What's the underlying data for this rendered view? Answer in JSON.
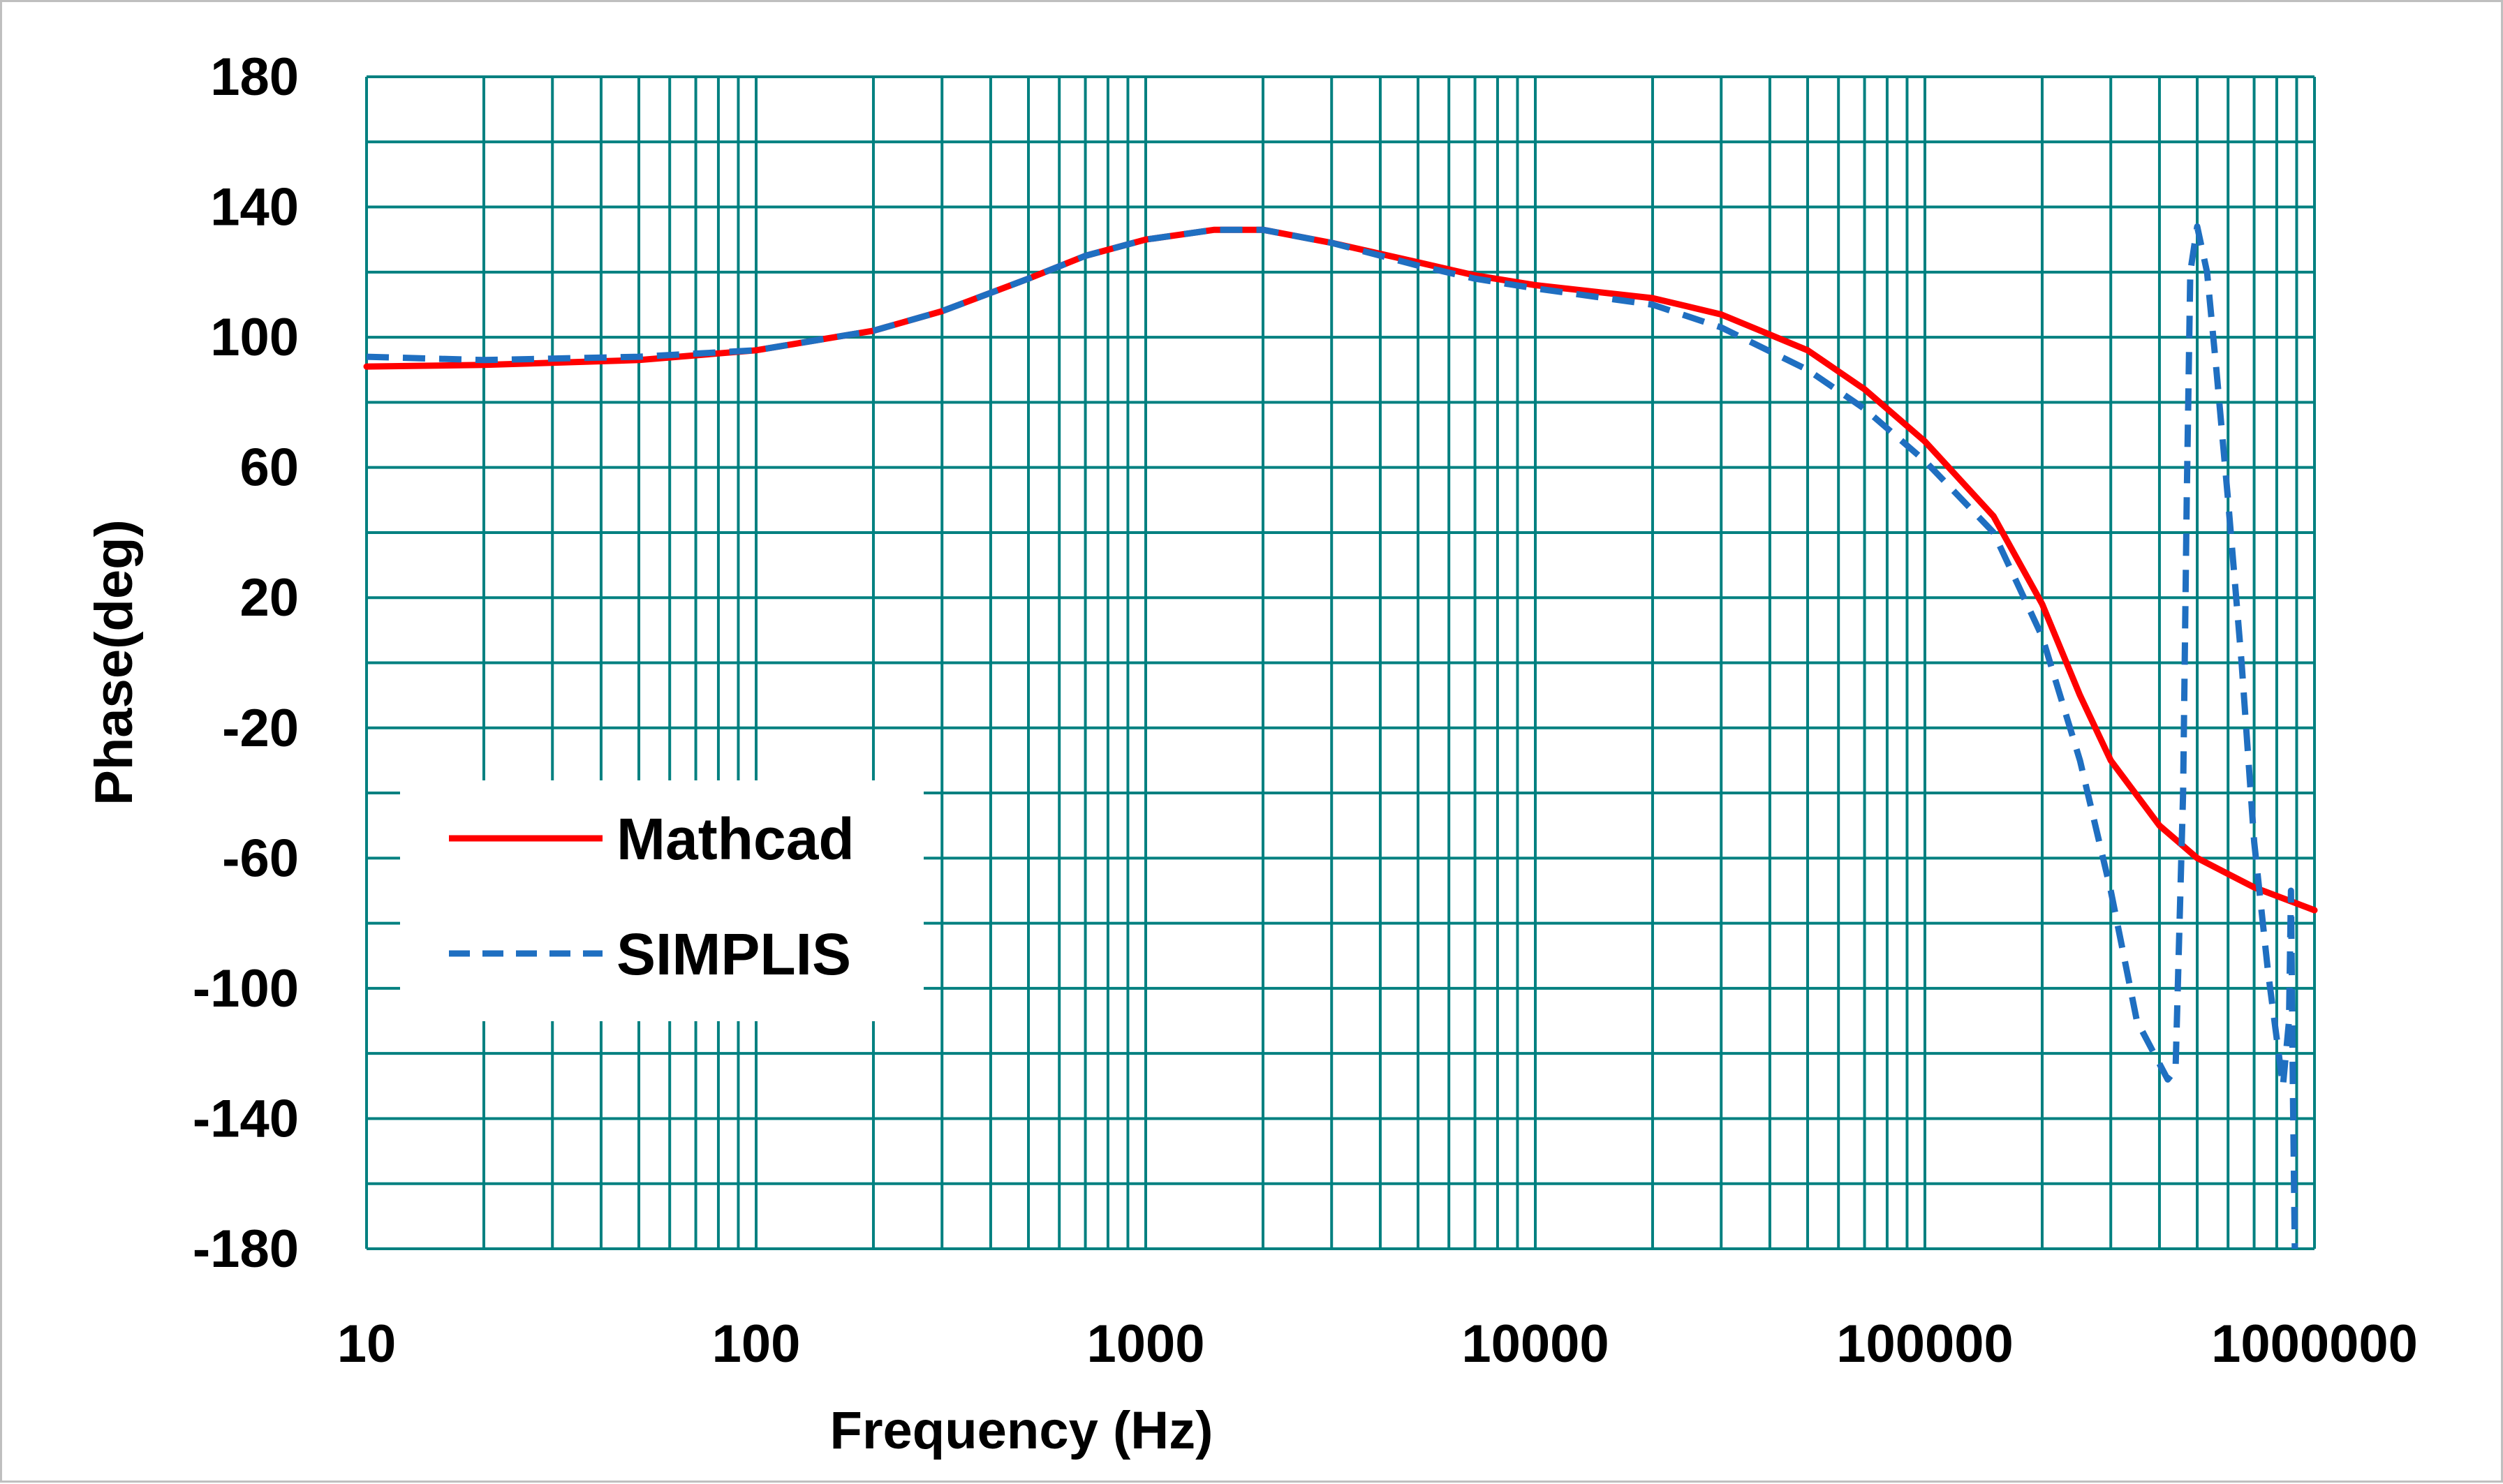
{
  "colors": {
    "grid": "#008080",
    "axis_text": "#000000",
    "frame": "#bfbfbf",
    "background": "#ffffff"
  },
  "chart_data": {
    "type": "line",
    "title": "",
    "xlabel": "Frequency (Hz)",
    "ylabel": "Phase(deg)",
    "x_scale": "log",
    "xlim": [
      10,
      1000000
    ],
    "ylim": [
      -180,
      180
    ],
    "x_ticks": [
      "10",
      "100",
      "1000",
      "10000",
      "100000",
      "1000000"
    ],
    "y_ticks": [
      "180",
      "140",
      "100",
      "60",
      "20",
      "-20",
      "-60",
      "-100",
      "-140",
      "-180"
    ],
    "y_tick_values": [
      180,
      140,
      100,
      60,
      20,
      -20,
      -60,
      -100,
      -140,
      -180
    ],
    "grid": true,
    "minor_grid": true,
    "legend_position": "left-lower-inside",
    "series": [
      {
        "name": "Mathcad",
        "color": "#ff0000",
        "style": "solid",
        "points": [
          [
            10,
            91
          ],
          [
            20,
            91.5
          ],
          [
            50,
            93
          ],
          [
            100,
            96
          ],
          [
            200,
            102
          ],
          [
            300,
            108
          ],
          [
            500,
            118
          ],
          [
            700,
            125
          ],
          [
            1000,
            130
          ],
          [
            1500,
            133
          ],
          [
            2000,
            133
          ],
          [
            3000,
            129
          ],
          [
            5000,
            123
          ],
          [
            7000,
            119
          ],
          [
            10000,
            116
          ],
          [
            20000,
            112
          ],
          [
            30000,
            107
          ],
          [
            50000,
            96
          ],
          [
            70000,
            84
          ],
          [
            100000,
            68
          ],
          [
            150000,
            45
          ],
          [
            200000,
            18
          ],
          [
            250000,
            -10
          ],
          [
            300000,
            -30
          ],
          [
            400000,
            -50
          ],
          [
            500000,
            -60
          ],
          [
            700000,
            -69
          ],
          [
            1000000,
            -76
          ]
        ]
      },
      {
        "name": "SIMPLIS",
        "color": "#1f6fc1",
        "style": "dashed",
        "points": [
          [
            10,
            94
          ],
          [
            20,
            93
          ],
          [
            50,
            94
          ],
          [
            100,
            96
          ],
          [
            200,
            102
          ],
          [
            300,
            108
          ],
          [
            500,
            118
          ],
          [
            700,
            125
          ],
          [
            1000,
            130
          ],
          [
            1500,
            133
          ],
          [
            2000,
            133
          ],
          [
            3000,
            129
          ],
          [
            5000,
            122
          ],
          [
            7000,
            118
          ],
          [
            10000,
            115
          ],
          [
            20000,
            110
          ],
          [
            30000,
            103
          ],
          [
            50000,
            90
          ],
          [
            70000,
            78
          ],
          [
            100000,
            62
          ],
          [
            150000,
            40
          ],
          [
            200000,
            8
          ],
          [
            250000,
            -30
          ],
          [
            300000,
            -70
          ],
          [
            350000,
            -110
          ],
          [
            420000,
            -128
          ],
          [
            440000,
            -125
          ],
          [
            460000,
            -40
          ],
          [
            470000,
            50
          ],
          [
            480000,
            120
          ],
          [
            500000,
            134
          ],
          [
            530000,
            120
          ],
          [
            560000,
            90
          ],
          [
            600000,
            50
          ],
          [
            650000,
            0
          ],
          [
            700000,
            -55
          ],
          [
            760000,
            -95
          ],
          [
            830000,
            -130
          ],
          [
            860000,
            -110
          ],
          [
            870000,
            -70
          ],
          [
            880000,
            -130
          ],
          [
            890000,
            -180
          ]
        ]
      }
    ]
  }
}
